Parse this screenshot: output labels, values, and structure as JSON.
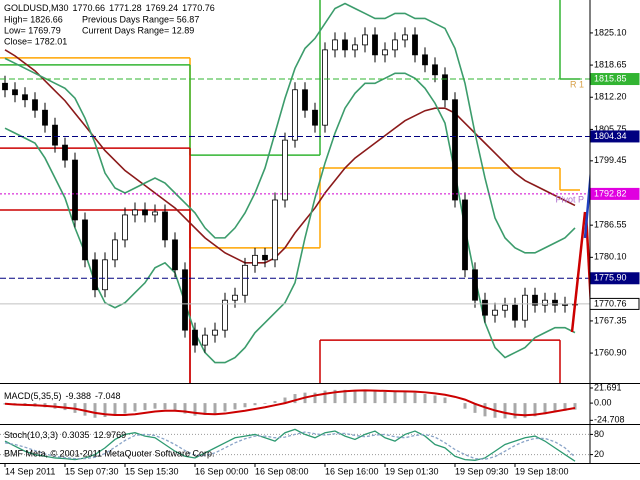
{
  "chart_data": [
    {
      "type": "candlestick",
      "symbol": "GOLDUSD,M30",
      "info": [
        "High= 1826.66",
        "Previous Days Range= 56.87",
        "Low= 1769.79",
        "Current Days Range= 12.89",
        "Close= 1782.01"
      ],
      "open": [
        1815.0,
        1813.7,
        1812.7,
        1811.7,
        1809.6,
        1806.6,
        1802.6,
        1799.6,
        1787.6,
        1779.6,
        1773.6,
        1779.6,
        1783.6,
        1788.6,
        1789.6,
        1788.6,
        1789.2,
        1783.6,
        1777.6,
        1765.5,
        1762.5,
        1764.5,
        1765.5,
        1771.5,
        1772.5,
        1778.5,
        1780.5,
        1779.6,
        1791.6,
        1803.6,
        1813.7,
        1809.6,
        1806.6,
        1821.7,
        1823.7,
        1821.7,
        1822.7,
        1824.7,
        1820.7,
        1821.7,
        1823.7,
        1824.7,
        1820.7,
        1818.7,
        1816.7,
        1811.7,
        1791.6,
        1777.6,
        1771.5,
        1768.5,
        1769.5,
        1770.5,
        1767.5,
        1772.5,
        1770.5,
        1771.5,
        1770.5,
        1770.66
      ],
      "high": [
        1816.5,
        1815.2,
        1814.2,
        1813.2,
        1811.1,
        1808.1,
        1804.1,
        1801.1,
        1789.1,
        1781.1,
        1781.1,
        1785.1,
        1790.1,
        1791.1,
        1791.1,
        1790.7,
        1790.7,
        1785.1,
        1779.1,
        1767.0,
        1766.0,
        1767.0,
        1773.0,
        1774.0,
        1780.0,
        1782.0,
        1782.0,
        1793.1,
        1805.1,
        1815.2,
        1815.2,
        1811.1,
        1823.2,
        1825.2,
        1825.2,
        1824.2,
        1826.2,
        1826.2,
        1823.2,
        1825.2,
        1826.2,
        1826.2,
        1822.2,
        1820.2,
        1818.2,
        1813.2,
        1793.1,
        1779.1,
        1773.0,
        1771.0,
        1772.0,
        1772.0,
        1774.0,
        1774.0,
        1773.0,
        1773.0,
        1772.2,
        1771.28
      ],
      "low": [
        1812.2,
        1811.2,
        1810.2,
        1808.1,
        1805.1,
        1801.1,
        1798.1,
        1786.1,
        1778.1,
        1772.1,
        1772.1,
        1778.1,
        1782.1,
        1787.1,
        1787.1,
        1787.1,
        1782.1,
        1776.1,
        1764.0,
        1761.0,
        1761.0,
        1763.0,
        1764.0,
        1770.0,
        1771.0,
        1777.0,
        1778.1,
        1778.1,
        1790.1,
        1802.1,
        1808.1,
        1805.1,
        1805.1,
        1820.2,
        1820.2,
        1820.2,
        1821.2,
        1819.2,
        1819.2,
        1820.2,
        1822.2,
        1819.2,
        1817.2,
        1815.2,
        1810.2,
        1790.1,
        1776.1,
        1770.0,
        1767.0,
        1767.0,
        1768.0,
        1766.0,
        1766.0,
        1769.0,
        1769.0,
        1769.0,
        1769.0,
        1769.24
      ],
      "close": [
        1813.7,
        1812.7,
        1811.7,
        1809.6,
        1806.6,
        1802.6,
        1799.6,
        1787.6,
        1779.6,
        1773.6,
        1779.6,
        1783.6,
        1788.6,
        1789.6,
        1788.6,
        1789.2,
        1783.6,
        1777.6,
        1765.5,
        1762.5,
        1764.5,
        1765.5,
        1771.5,
        1772.5,
        1778.5,
        1780.5,
        1779.6,
        1791.6,
        1803.6,
        1813.7,
        1809.6,
        1806.6,
        1821.7,
        1823.7,
        1821.7,
        1822.7,
        1824.7,
        1820.7,
        1821.7,
        1823.7,
        1824.7,
        1820.7,
        1818.7,
        1816.7,
        1811.7,
        1791.6,
        1777.6,
        1771.5,
        1768.5,
        1769.5,
        1770.5,
        1767.5,
        1772.5,
        1770.5,
        1771.5,
        1770.5,
        1770.66,
        1770.76
      ],
      "color_up": "#ffffff",
      "color_down": "#000000",
      "overlays": [
        {
          "color": "#8b1a1a",
          "values": [
            1821.7,
            1820.5,
            1819,
            1817.5,
            1815.5,
            1813.5,
            1811.5,
            1809,
            1806.5,
            1804,
            1801.5,
            1799.5,
            1797.5,
            1796,
            1794.5,
            1793,
            1791.5,
            1790,
            1788,
            1786,
            1784,
            1782.5,
            1781,
            1780,
            1779,
            1779,
            1779,
            1780,
            1782,
            1785,
            1787.5,
            1790,
            1793,
            1795.5,
            1798,
            1800,
            1801.5,
            1803,
            1804.5,
            1806,
            1807.5,
            1808.5,
            1809.5,
            1810,
            1810,
            1809,
            1807,
            1805,
            1803,
            1801,
            1799,
            1797,
            1795.5,
            1794.5,
            1793.5,
            1792.5,
            1791.5,
            1790.5
          ]
        },
        {
          "color": "#3c9c6c",
          "values": [
            1820,
            1819,
            1818,
            1817,
            1816,
            1815,
            1814,
            1812,
            1808,
            1803,
            1797,
            1794,
            1793,
            1794,
            1795,
            1796,
            1795,
            1793,
            1791,
            1789,
            1786,
            1784,
            1784,
            1786,
            1789,
            1793,
            1798,
            1805,
            1812,
            1818,
            1822,
            1824,
            1827,
            1830,
            1831,
            1830,
            1829,
            1828,
            1828,
            1829,
            1829,
            1828,
            1828,
            1827,
            1826,
            1822,
            1815,
            1805,
            1796,
            1788,
            1784,
            1782,
            1781,
            1781,
            1782,
            1783,
            1784,
            1786
          ]
        },
        {
          "color": "#3c9c6c",
          "values": [
            1806,
            1805,
            1804,
            1803,
            1800,
            1796,
            1792,
            1786,
            1781,
            1775,
            1771,
            1770,
            1771,
            1773,
            1775,
            1778,
            1779,
            1777,
            1771,
            1765,
            1761,
            1759,
            1759,
            1760,
            1762,
            1765,
            1767,
            1769,
            1771,
            1775,
            1784,
            1792,
            1799,
            1805,
            1810,
            1813,
            1815,
            1815,
            1816,
            1817,
            1817,
            1816,
            1814,
            1811,
            1807,
            1797,
            1786,
            1776,
            1767,
            1762,
            1760,
            1761,
            1762,
            1764,
            1765,
            1766,
            1766,
            1765
          ]
        }
      ],
      "levels": {
        "segments": [
          0,
          19,
          32,
          56,
          58
        ],
        "lines": [
          {
            "color": "#ffa500",
            "values": [
              1820.1,
              1782.0,
              1798.0,
              1793.6
            ]
          },
          {
            "color": "#32b432",
            "values": [
              1818.7,
              1800.6,
              1835.0,
              1815.85
            ]
          },
          {
            "color": "#cc0000",
            "values": [
              1802.0,
              1750.0,
              1763.5,
              1745.0
            ]
          },
          {
            "color": "#cc0000",
            "values": [
              1789.6,
              1745.0,
              1750.0,
              1740.0
            ]
          }
        ]
      },
      "price_lines": [
        {
          "value": 1815.85,
          "color": "#32b432",
          "style": "dash",
          "tag_color": "#32b432",
          "text_color": "#ffffff",
          "note": "R 1",
          "note_color": "#d8a048"
        },
        {
          "value": 1804.34,
          "color": "#000080",
          "style": "dash",
          "tag_color": "#000080",
          "text_color": "#ffffff"
        },
        {
          "value": 1792.82,
          "color": "#d000d0",
          "style": "dot",
          "tag_color": "#e000e0",
          "text_color": "#ffffff",
          "note": "Pivot P",
          "note_color": "#b070d0"
        },
        {
          "value": 1775.9,
          "label": "1775.90",
          "color": "#000080",
          "style": "dash",
          "tag_color": "#000080",
          "text_color": "#ffffff"
        },
        {
          "value": 1770.76,
          "color": "#c0c0c0",
          "style": "solid",
          "tag_color": "#ffffff",
          "text_color": "#000000"
        }
      ],
      "ylim": [
        1754.9,
        1831.7
      ],
      "yticks": [
        {
          "value": 1825.1,
          "label": "1825.10"
        },
        1818.65,
        {
          "value": 1812.2,
          "label": "1812.20"
        },
        1805.75,
        1799.45,
        1786.55,
        {
          "value": 1780.1,
          "label": "1780.10"
        },
        1767.35,
        {
          "value": 1760.9,
          "label": "1760.90"
        }
      ]
    },
    {
      "type": "macd",
      "name": "MACD(5,35,5)",
      "hist": [
        -2,
        -3,
        -4,
        -5,
        -6,
        -8,
        -10,
        -14,
        -18,
        -21,
        -20,
        -18,
        -15,
        -12,
        -10,
        -8,
        -9,
        -11,
        -15,
        -18,
        -17,
        -15,
        -12,
        -9,
        -6,
        -3,
        -1,
        3,
        8,
        13,
        15,
        15,
        18,
        19,
        19,
        18,
        18,
        17,
        16,
        16,
        16,
        15,
        13,
        11,
        8,
        0,
        -8,
        -14,
        -19,
        -21,
        -22,
        -22,
        -21,
        -19,
        -16,
        -13,
        -11,
        -9.388
      ],
      "signal": [
        -1,
        -2,
        -2.5,
        -3,
        -4,
        -5,
        -6.5,
        -8,
        -11,
        -14,
        -16,
        -17,
        -17,
        -16,
        -14,
        -12,
        -11,
        -11,
        -12,
        -14,
        -15.5,
        -16,
        -15,
        -13,
        -11,
        -8.5,
        -6,
        -3,
        0,
        4,
        8,
        11,
        13.5,
        15.5,
        17,
        18,
        18.2,
        18,
        17.5,
        17,
        16.8,
        16.5,
        15.5,
        14,
        12,
        9,
        5,
        -1,
        -6,
        -10.5,
        -14,
        -16.5,
        -17.5,
        -16.5,
        -14.5,
        -12,
        -9.5,
        -7.048
      ],
      "hist_color": "#a8a8a8",
      "signal_color": "#cc0000",
      "ylim": [
        -30,
        26
      ],
      "yticks": [
        21.691,
        {
          "value": 0,
          "label": "0.00"
        },
        -24.708
      ]
    },
    {
      "type": "stoch",
      "name": "Stoch(10,3,3)",
      "main": [
        60,
        45,
        30,
        20,
        15,
        10,
        8,
        5,
        10,
        20,
        40,
        65,
        80,
        85,
        75,
        70,
        50,
        30,
        15,
        10,
        25,
        40,
        55,
        70,
        75,
        80,
        70,
        60,
        85,
        95,
        80,
        70,
        85,
        90,
        75,
        65,
        80,
        90,
        70,
        60,
        80,
        90,
        75,
        50,
        40,
        15,
        5,
        3,
        10,
        30,
        50,
        60,
        70,
        75,
        60,
        40,
        20,
        0.3035
      ],
      "signal": [
        55,
        50,
        42,
        32,
        22,
        15,
        11,
        8,
        8,
        12,
        23,
        42,
        62,
        77,
        80,
        77,
        65,
        50,
        32,
        18,
        17,
        25,
        40,
        55,
        67,
        75,
        75,
        70,
        72,
        80,
        87,
        82,
        78,
        82,
        83,
        77,
        73,
        78,
        80,
        73,
        70,
        77,
        80,
        72,
        55,
        35,
        20,
        8,
        6,
        14,
        30,
        47,
        60,
        68,
        68,
        58,
        40,
        12.9769
      ],
      "main_color": "#2e9a72",
      "signal_color": "#8aa4c8",
      "ylim": [
        -5,
        105
      ],
      "yticks": [
        80,
        20
      ],
      "xticks": [
        {
          "value": 0,
          "label": "14 Sep 2011"
        },
        {
          "value": 6,
          "label": "15 Sep 07:30"
        },
        {
          "value": 12,
          "label": "15 Sep 15:30"
        },
        {
          "value": 19,
          "label": "16 Sep 00:00"
        },
        {
          "value": 25,
          "label": "16 Sep 08:00"
        },
        {
          "value": 32,
          "label": "16 Sep 16:00"
        },
        {
          "value": 38,
          "label": "19 Sep 01:30"
        },
        {
          "value": 45,
          "label": "19 Sep 09:30"
        },
        {
          "value": 51,
          "label": "19 Sep 18:00"
        }
      ]
    }
  ],
  "footer": "BMF Meta, © 2001-2011 MetaQuoter Software Corp."
}
